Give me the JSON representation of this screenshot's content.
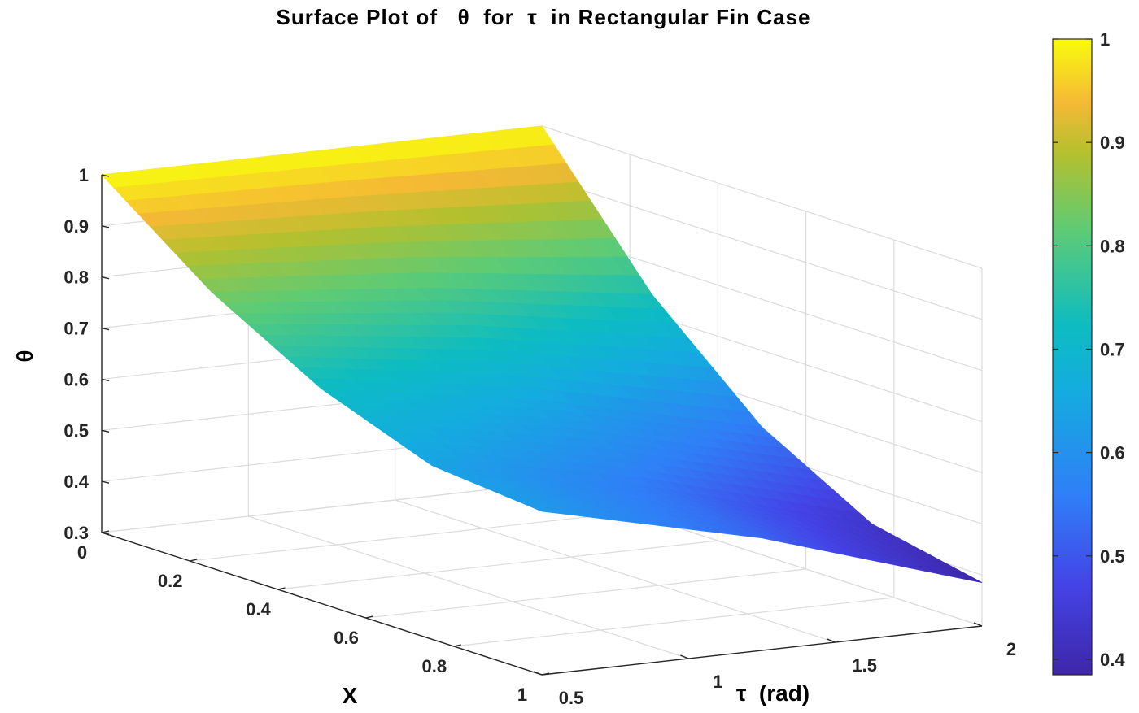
{
  "chart_data": {
    "type": "surface",
    "title": "Surface Plot of   θ  for  τ  in Rectangular Fin Case",
    "xlabel": "X",
    "ylabel": "τ  (rad)",
    "zlabel": "θ",
    "x": [
      0,
      0.25,
      0.5,
      0.75,
      1
    ],
    "tau": [
      0.5,
      1.25,
      2
    ],
    "theta": [
      [
        1.0,
        1.0,
        1.0
      ],
      [
        0.84,
        0.8,
        0.74
      ],
      [
        0.72,
        0.65,
        0.55
      ],
      [
        0.64,
        0.55,
        0.43
      ],
      [
        0.62,
        0.52,
        0.385
      ]
    ],
    "xlim": [
      0,
      1
    ],
    "taulim": [
      0.5,
      2
    ],
    "zlim": [
      0.3,
      1
    ],
    "x_ticks": [
      "0",
      "0.2",
      "0.4",
      "0.6",
      "0.8",
      "1"
    ],
    "tau_ticks": [
      "0.5",
      "1",
      "1.5",
      "2"
    ],
    "z_ticks": [
      "0.3",
      "0.4",
      "0.5",
      "0.6",
      "0.7",
      "0.8",
      "0.9",
      "1"
    ],
    "grid": true,
    "colormap": "parula",
    "colorbar": {
      "range": [
        0.385,
        1
      ],
      "ticks": [
        "0.4",
        "0.5",
        "0.6",
        "0.7",
        "0.8",
        "0.9",
        "1"
      ],
      "placement": "right"
    }
  }
}
